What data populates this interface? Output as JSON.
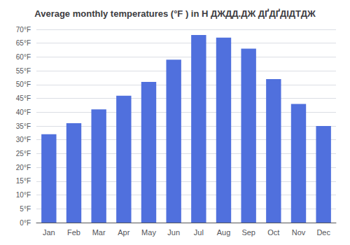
{
  "chart_data": {
    "type": "bar",
    "title": "Average monthly temperatures (°F ) in Н ДЖДД.ДЖ ДҐДҐДІДТДЖ",
    "categories": [
      "Jan",
      "Feb",
      "Mar",
      "Apr",
      "May",
      "Jun",
      "Jul",
      "Aug",
      "Sep",
      "Oct",
      "Nov",
      "Dec"
    ],
    "values": [
      32,
      36,
      41,
      46,
      51,
      59,
      68,
      67,
      63,
      52,
      43,
      35
    ],
    "ylim": [
      0,
      70
    ],
    "yticks": [
      {
        "value": 0,
        "label": "0°F"
      },
      {
        "value": 5,
        "label": "5°F"
      },
      {
        "value": 10,
        "label": "10°F"
      },
      {
        "value": 15,
        "label": "15°F"
      },
      {
        "value": 20,
        "label": "20°F"
      },
      {
        "value": 25,
        "label": "25°F"
      },
      {
        "value": 30,
        "label": "30°F"
      },
      {
        "value": 35,
        "label": "35°F"
      },
      {
        "value": 40,
        "label": "40°F"
      },
      {
        "value": 45,
        "label": "45°F"
      },
      {
        "value": 50,
        "label": "50°F"
      },
      {
        "value": 55,
        "label": "55°F"
      },
      {
        "value": 60,
        "label": "60°F"
      },
      {
        "value": 65,
        "label": "65°F"
      },
      {
        "value": 70,
        "label": "70°F"
      }
    ],
    "grid": true
  }
}
